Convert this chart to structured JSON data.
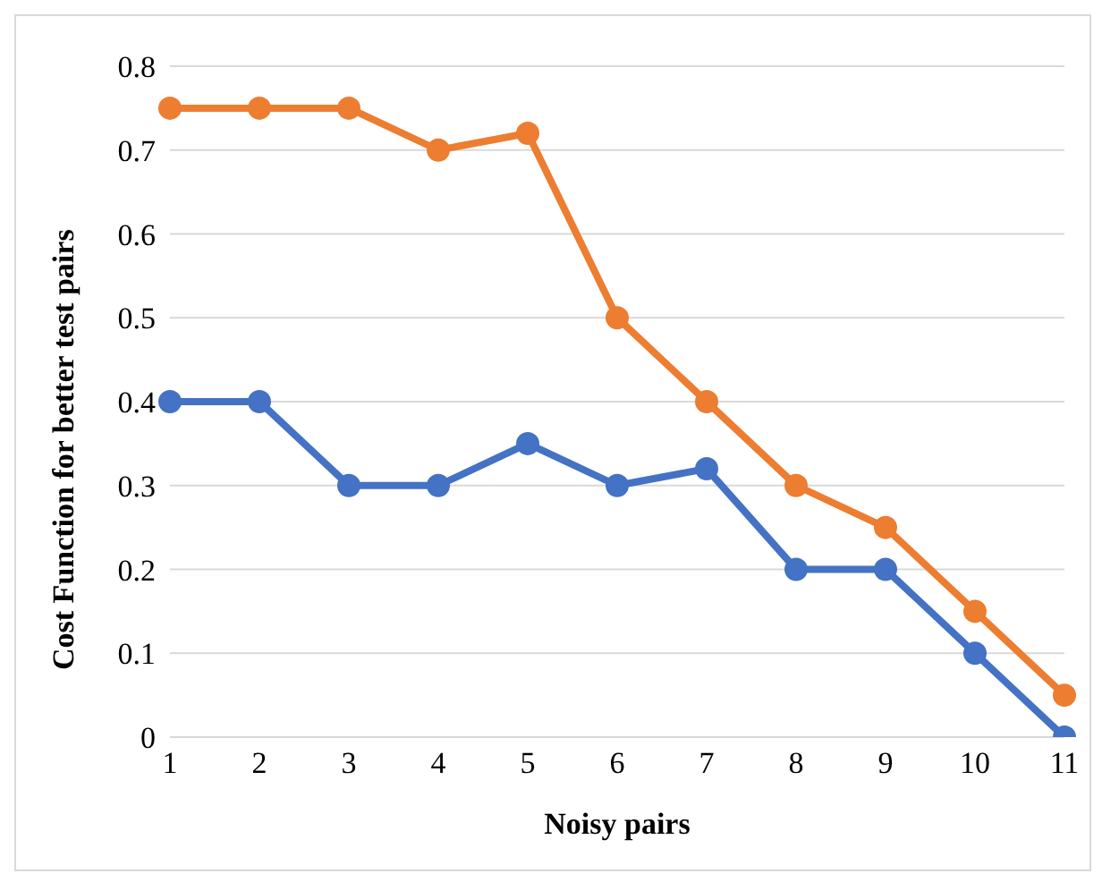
{
  "chart_data": {
    "type": "line",
    "xlabel": "Noisy pairs",
    "ylabel": "Cost Function for better test pairs",
    "categories": [
      "1",
      "2",
      "3",
      "4",
      "5",
      "6",
      "7",
      "8",
      "9",
      "10",
      "11"
    ],
    "series": [
      {
        "color": "#4472c4",
        "values": [
          0.4,
          0.4,
          0.3,
          0.3,
          0.35,
          0.3,
          0.32,
          0.2,
          0.2,
          0.1,
          0
        ]
      },
      {
        "color": "#ed7d31",
        "values": [
          0.75,
          0.75,
          0.75,
          0.7,
          0.72,
          0.5,
          0.4,
          0.3,
          0.25,
          0.15,
          0.05
        ]
      }
    ],
    "ylim": [
      0,
      0.8
    ],
    "yticks": [
      0,
      0.1,
      0.2,
      0.3,
      0.4,
      0.5,
      0.6,
      0.7,
      0.8
    ],
    "grid": "y",
    "marker": "circle",
    "line_style": "solid",
    "legend": false
  }
}
